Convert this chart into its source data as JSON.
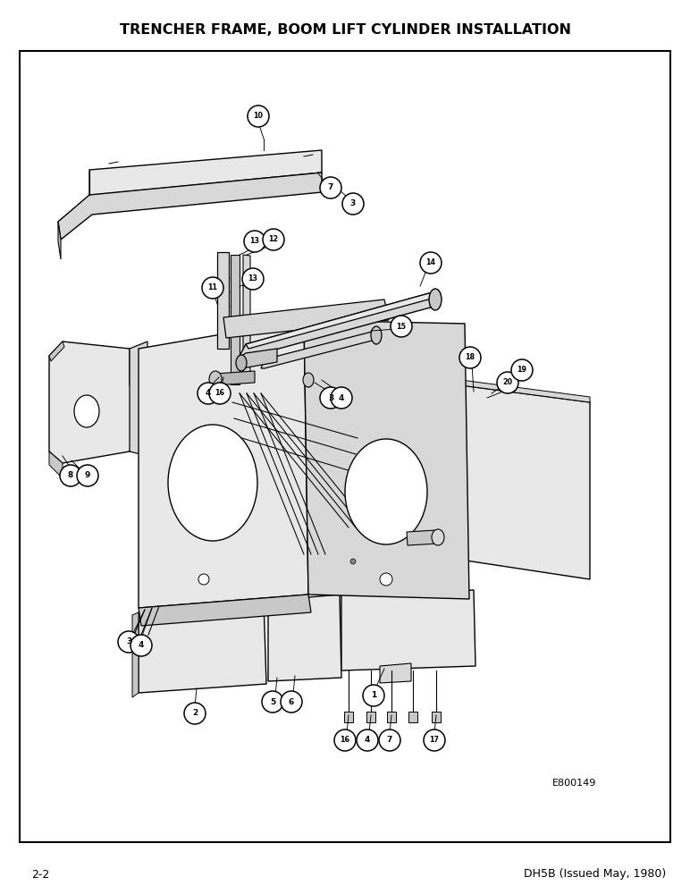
{
  "title": "TRENCHER FRAME, BOOM LIFT CYLINDER INSTALLATION",
  "page_num": "2-2",
  "footer_right": "DH5B (Issued May, 1980)",
  "watermark": "E800149",
  "bg_color": "#ffffff",
  "title_fontsize": 11.5,
  "lc": "#000000",
  "gray1": "#e8e8e8",
  "gray2": "#d8d8d8",
  "gray3": "#c8c8c8",
  "gray4": "#b8b8b8"
}
